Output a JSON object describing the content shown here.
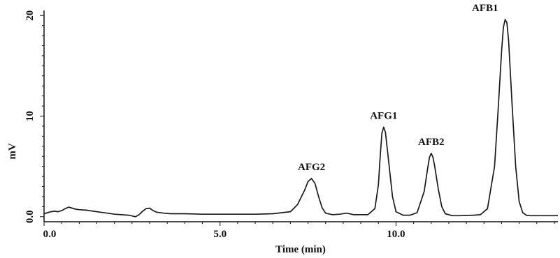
{
  "chart_data": {
    "type": "line",
    "title": "",
    "xlabel": "Time (min)",
    "ylabel": "mV",
    "xlim": [
      0,
      14.6
    ],
    "ylim": [
      -0.5,
      20.5
    ],
    "grid": false,
    "legend": "none",
    "line_color": "#1a1a1a",
    "x_ticks": [
      {
        "value": 0,
        "label": "0.0"
      },
      {
        "value": 5,
        "label": "5.0"
      },
      {
        "value": 10,
        "label": "10.0"
      }
    ],
    "y_ticks": [
      {
        "value": 0,
        "label": "0.0"
      },
      {
        "value": 10,
        "label": "10"
      },
      {
        "value": 20,
        "label": "20"
      }
    ],
    "series": [
      {
        "x": [
          0.0,
          0.1,
          0.2,
          0.3,
          0.4,
          0.5,
          0.6,
          0.7,
          0.8,
          0.9,
          1.0,
          1.2,
          1.4,
          1.6,
          1.8,
          2.0,
          2.2,
          2.4,
          2.6,
          2.7,
          2.8,
          2.9,
          3.0,
          3.1,
          3.2,
          3.4,
          3.6,
          4.0,
          4.5,
          5.0,
          5.5,
          6.0,
          6.5,
          7.0,
          7.2,
          7.4,
          7.5,
          7.6,
          7.7,
          7.8,
          7.9,
          8.0,
          8.2,
          8.4,
          8.6,
          8.8,
          9.0,
          9.2,
          9.4,
          9.5,
          9.55,
          9.6,
          9.65,
          9.7,
          9.8,
          9.9,
          10.0,
          10.2,
          10.4,
          10.6,
          10.8,
          10.9,
          10.95,
          11.0,
          11.05,
          11.1,
          11.2,
          11.3,
          11.4,
          11.6,
          11.8,
          12.2,
          12.4,
          12.6,
          12.8,
          12.9,
          13.0,
          13.05,
          13.1,
          13.15,
          13.2,
          13.3,
          13.4,
          13.5,
          13.6,
          13.7,
          13.8,
          14.0,
          14.3,
          14.6
        ],
        "y": [
          0.3,
          0.4,
          0.5,
          0.55,
          0.5,
          0.6,
          0.8,
          0.95,
          0.85,
          0.75,
          0.7,
          0.65,
          0.55,
          0.45,
          0.35,
          0.25,
          0.2,
          0.15,
          0.0,
          0.2,
          0.55,
          0.8,
          0.85,
          0.6,
          0.45,
          0.35,
          0.3,
          0.3,
          0.25,
          0.25,
          0.25,
          0.25,
          0.3,
          0.5,
          1.2,
          2.6,
          3.5,
          3.8,
          3.3,
          2.0,
          0.9,
          0.35,
          0.2,
          0.25,
          0.35,
          0.2,
          0.2,
          0.2,
          0.8,
          3.2,
          6.0,
          8.3,
          8.9,
          8.4,
          5.2,
          2.0,
          0.5,
          0.15,
          0.15,
          0.4,
          2.5,
          4.8,
          5.9,
          6.3,
          5.9,
          5.0,
          2.8,
          1.0,
          0.3,
          0.1,
          0.1,
          0.15,
          0.2,
          0.8,
          5.0,
          10.5,
          16.5,
          18.8,
          19.6,
          19.3,
          17.5,
          11.0,
          5.0,
          1.5,
          0.4,
          0.15,
          0.1,
          0.1,
          0.1,
          0.1
        ]
      }
    ],
    "annotations": [
      {
        "text": "AFG2",
        "x": 7.6,
        "y": 3.8
      },
      {
        "text": "AFG1",
        "x": 9.65,
        "y": 8.9
      },
      {
        "text": "AFB2",
        "x": 11.0,
        "y": 6.3
      },
      {
        "text": "AFB1",
        "x": 13.1,
        "y": 19.6
      }
    ]
  }
}
